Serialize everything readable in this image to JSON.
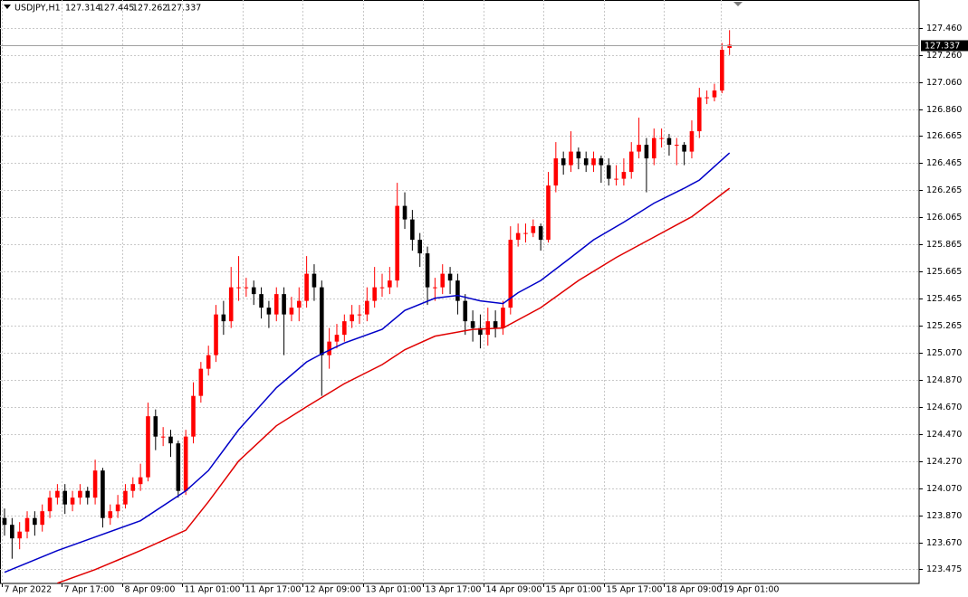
{
  "chart_data": {
    "type": "candlestick",
    "title": "USDJPY,H1",
    "ohlc_header": [
      127.314,
      127.445,
      127.262,
      127.337
    ],
    "current_price": 127.337,
    "up_color": "#ff0000",
    "down_color": "#000000",
    "grid": true,
    "xlim": [
      -0.6,
      121.1
    ],
    "ylim": [
      123.368,
      127.667
    ],
    "xticks": [
      {
        "value": -0.36,
        "label": "7 Apr 2022"
      },
      {
        "value": 7.55,
        "label": "7 Apr 17:00"
      },
      {
        "value": 15.6,
        "label": "8 Apr 09:00"
      },
      {
        "value": 23.5,
        "label": "11 Apr 01:00"
      },
      {
        "value": 31.5,
        "label": "11 Apr 17:00"
      },
      {
        "value": 39.4,
        "label": "12 Apr 09:00"
      },
      {
        "value": 47.5,
        "label": "13 Apr 01:00"
      },
      {
        "value": 55.4,
        "label": "13 Apr 17:00"
      },
      {
        "value": 63.4,
        "label": "14 Apr 09:00"
      },
      {
        "value": 71.3,
        "label": "15 Apr 01:00"
      },
      {
        "value": 79.4,
        "label": "15 Apr 17:00"
      },
      {
        "value": 87.3,
        "label": "18 Apr 09:00"
      },
      {
        "value": 94.8,
        "label": "19 Apr 01:00"
      }
    ],
    "yticks": [
      {
        "value": 127.46,
        "label": "127.460"
      },
      {
        "value": 127.26,
        "label": "127.260"
      },
      {
        "value": 127.06,
        "label": "127.060"
      },
      {
        "value": 126.86,
        "label": "126.860"
      },
      126.665,
      126.465,
      126.265,
      126.065,
      125.865,
      125.665,
      125.465,
      125.265,
      {
        "value": 125.07,
        "label": "125.070"
      },
      {
        "value": 124.87,
        "label": "124.870"
      },
      {
        "value": 124.67,
        "label": "124.670"
      },
      {
        "value": 124.47,
        "label": "124.470"
      },
      {
        "value": 124.27,
        "label": "124.270"
      },
      {
        "value": 124.07,
        "label": "124.070"
      },
      {
        "value": 123.87,
        "label": "123.870"
      },
      {
        "value": 123.67,
        "label": "123.670"
      },
      123.475
    ],
    "open": [
      123.85,
      123.8,
      123.7,
      123.75,
      123.85,
      123.8,
      123.9,
      124.0,
      124.05,
      123.95,
      124.0,
      124.05,
      124.0,
      124.2,
      123.85,
      123.9,
      123.95,
      124.05,
      124.1,
      124.15,
      124.6,
      124.45,
      124.45,
      124.4,
      124.05,
      124.45,
      124.75,
      124.95,
      125.05,
      125.35,
      125.3,
      125.55,
      125.55,
      125.55,
      125.5,
      125.4,
      125.35,
      125.5,
      125.35,
      125.4,
      125.45,
      125.65,
      125.55,
      125.05,
      125.15,
      125.2,
      125.3,
      125.35,
      125.35,
      125.45,
      125.55,
      125.55,
      125.6,
      126.15,
      126.05,
      125.9,
      125.8,
      125.55,
      125.55,
      125.65,
      125.6,
      125.45,
      125.3,
      125.25,
      125.2,
      125.3,
      125.25,
      125.4,
      125.9,
      125.95,
      125.95,
      126.0,
      125.9,
      126.3,
      126.5,
      126.45,
      126.55,
      126.5,
      126.45,
      126.5,
      126.45,
      126.35,
      126.35,
      126.4,
      126.55,
      126.6,
      126.5,
      126.65,
      126.65,
      126.6,
      126.6,
      126.55,
      126.7,
      126.95,
      126.95,
      127.0,
      127.314
    ],
    "high": [
      123.92,
      123.85,
      123.82,
      123.9,
      123.9,
      123.95,
      124.05,
      124.1,
      124.1,
      124.05,
      124.1,
      124.08,
      124.28,
      124.22,
      123.95,
      124.02,
      124.1,
      124.15,
      124.25,
      124.7,
      124.65,
      124.52,
      124.5,
      124.42,
      124.5,
      124.85,
      125.0,
      125.12,
      125.42,
      125.45,
      125.7,
      125.78,
      125.62,
      125.6,
      125.55,
      125.45,
      125.55,
      125.55,
      125.48,
      125.55,
      125.78,
      125.72,
      125.6,
      125.25,
      125.28,
      125.35,
      125.42,
      125.42,
      125.55,
      125.7,
      125.65,
      125.7,
      126.32,
      126.25,
      126.12,
      125.95,
      125.85,
      125.62,
      125.72,
      125.7,
      125.65,
      125.5,
      125.38,
      125.35,
      125.4,
      125.38,
      125.45,
      126.0,
      126.02,
      126.02,
      126.05,
      126.02,
      126.4,
      126.62,
      126.55,
      126.7,
      126.58,
      126.55,
      126.55,
      126.52,
      126.5,
      126.45,
      126.5,
      126.62,
      126.8,
      126.65,
      126.72,
      126.72,
      126.68,
      126.65,
      126.62,
      126.78,
      127.02,
      127.0,
      127.05,
      127.35,
      127.445
    ],
    "low": [
      123.72,
      123.55,
      123.62,
      123.7,
      123.72,
      123.75,
      123.85,
      123.95,
      123.88,
      123.9,
      123.95,
      123.95,
      123.95,
      123.78,
      123.8,
      123.85,
      123.92,
      124.0,
      124.05,
      124.12,
      124.35,
      124.38,
      124.3,
      124.0,
      124.02,
      124.4,
      124.7,
      124.9,
      125.0,
      125.2,
      125.25,
      125.45,
      125.48,
      125.42,
      125.32,
      125.25,
      125.3,
      125.05,
      125.3,
      125.3,
      125.4,
      125.45,
      124.75,
      124.95,
      125.1,
      125.15,
      125.25,
      125.28,
      125.3,
      125.4,
      125.48,
      125.5,
      125.55,
      125.98,
      125.82,
      125.7,
      125.42,
      125.45,
      125.5,
      125.5,
      125.35,
      125.2,
      125.15,
      125.1,
      125.12,
      125.18,
      125.2,
      125.35,
      125.85,
      125.88,
      125.92,
      125.82,
      125.88,
      126.25,
      126.38,
      126.4,
      126.42,
      126.4,
      126.4,
      126.32,
      126.3,
      126.3,
      126.3,
      126.35,
      126.5,
      126.25,
      126.45,
      126.58,
      126.52,
      126.45,
      126.45,
      126.5,
      126.65,
      126.9,
      126.92,
      126.98,
      127.262
    ],
    "close": [
      123.8,
      123.7,
      123.75,
      123.85,
      123.8,
      123.9,
      124.0,
      124.05,
      123.95,
      124.0,
      124.05,
      124.0,
      124.2,
      123.85,
      123.9,
      123.95,
      124.05,
      124.1,
      124.15,
      124.6,
      124.45,
      124.45,
      124.4,
      124.05,
      124.45,
      124.75,
      124.95,
      125.05,
      125.35,
      125.3,
      125.55,
      125.55,
      125.55,
      125.5,
      125.4,
      125.35,
      125.5,
      125.35,
      125.4,
      125.45,
      125.65,
      125.55,
      125.05,
      125.15,
      125.2,
      125.3,
      125.35,
      125.35,
      125.45,
      125.55,
      125.55,
      125.6,
      126.15,
      126.05,
      125.9,
      125.8,
      125.55,
      125.55,
      125.65,
      125.6,
      125.45,
      125.3,
      125.25,
      125.2,
      125.3,
      125.25,
      125.4,
      125.9,
      125.95,
      125.95,
      126.0,
      125.9,
      126.3,
      126.5,
      126.45,
      126.55,
      126.5,
      126.45,
      126.5,
      126.45,
      126.35,
      126.35,
      126.4,
      126.55,
      126.6,
      126.5,
      126.65,
      126.65,
      126.6,
      126.6,
      126.55,
      126.7,
      126.95,
      126.95,
      127.0,
      127.3,
      127.337
    ],
    "series": [
      {
        "color": "#0000c8",
        "x": [
          0,
          7,
          12,
          18,
          24,
          27,
          31,
          36,
          40,
          42,
          45,
          50,
          53,
          57,
          60,
          63,
          66,
          68,
          71,
          75,
          78,
          82,
          86,
          90,
          92,
          96
        ],
        "values": [
          123.45,
          123.61,
          123.71,
          123.83,
          124.05,
          124.2,
          124.5,
          124.81,
          125.0,
          125.06,
          125.14,
          125.24,
          125.38,
          125.47,
          125.49,
          125.45,
          125.43,
          125.51,
          125.6,
          125.77,
          125.9,
          126.03,
          126.17,
          126.28,
          126.34,
          126.54
        ]
      },
      {
        "color": "#e00000",
        "x": [
          7,
          12,
          18,
          24,
          27,
          31,
          36,
          40,
          45,
          50,
          53,
          57,
          62,
          66,
          71,
          76,
          81,
          86,
          91,
          96
        ],
        "values": [
          123.37,
          123.47,
          123.61,
          123.76,
          123.97,
          124.27,
          124.53,
          124.67,
          124.84,
          124.98,
          125.09,
          125.19,
          125.24,
          125.25,
          125.4,
          125.6,
          125.77,
          125.92,
          126.07,
          126.28
        ]
      }
    ]
  }
}
